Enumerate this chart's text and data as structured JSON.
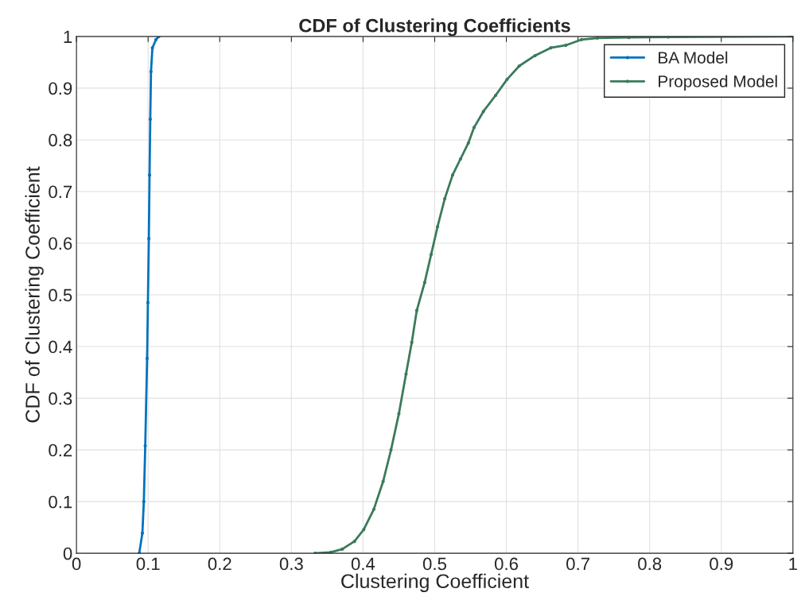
{
  "chart_data": {
    "type": "line",
    "title": "CDF of Clustering Coefficients",
    "xlabel": "Clustering Coefficient",
    "ylabel": "CDF of Clustering Coefficient",
    "xlim": [
      0,
      1
    ],
    "ylim": [
      0,
      1
    ],
    "xticks": [
      0,
      0.1,
      0.2,
      0.3,
      0.4,
      0.5,
      0.6,
      0.7,
      0.8,
      0.9,
      1
    ],
    "yticks": [
      0,
      0.1,
      0.2,
      0.3,
      0.4,
      0.5,
      0.6,
      0.7,
      0.8,
      0.9,
      1
    ],
    "grid": true,
    "legend": "top right",
    "marker": "circle",
    "line_style": "solid",
    "series": [
      {
        "name": "BA Model",
        "color": "#0072bd",
        "x": [
          0.0876,
          0.092,
          0.094,
          0.096,
          0.0986,
          0.0997,
          0.101,
          0.102,
          0.103,
          0.104,
          0.106,
          0.111,
          0.115
        ],
        "values": [
          0,
          0.039,
          0.1,
          0.208,
          0.377,
          0.485,
          0.609,
          0.732,
          0.84,
          0.932,
          0.978,
          0.994,
          1
        ]
      },
      {
        "name": "Proposed Model",
        "color": "#3a7a5a",
        "x": [
          0.333,
          0.355,
          0.371,
          0.388,
          0.401,
          0.415,
          0.428,
          0.439,
          0.45,
          0.46,
          0.468,
          0.475,
          0.486,
          0.495,
          0.504,
          0.514,
          0.525,
          0.536,
          0.547,
          0.555,
          0.568,
          0.585,
          0.601,
          0.618,
          0.64,
          0.662,
          0.683,
          0.705,
          0.727,
          0.771,
          0.826,
          1
        ],
        "values": [
          0,
          0.002,
          0.008,
          0.023,
          0.046,
          0.085,
          0.139,
          0.2,
          0.27,
          0.347,
          0.408,
          0.47,
          0.524,
          0.578,
          0.632,
          0.686,
          0.732,
          0.763,
          0.794,
          0.824,
          0.855,
          0.886,
          0.917,
          0.943,
          0.963,
          0.978,
          0.983,
          0.994,
          0.997,
          0.998,
          0.999,
          1
        ]
      }
    ]
  }
}
